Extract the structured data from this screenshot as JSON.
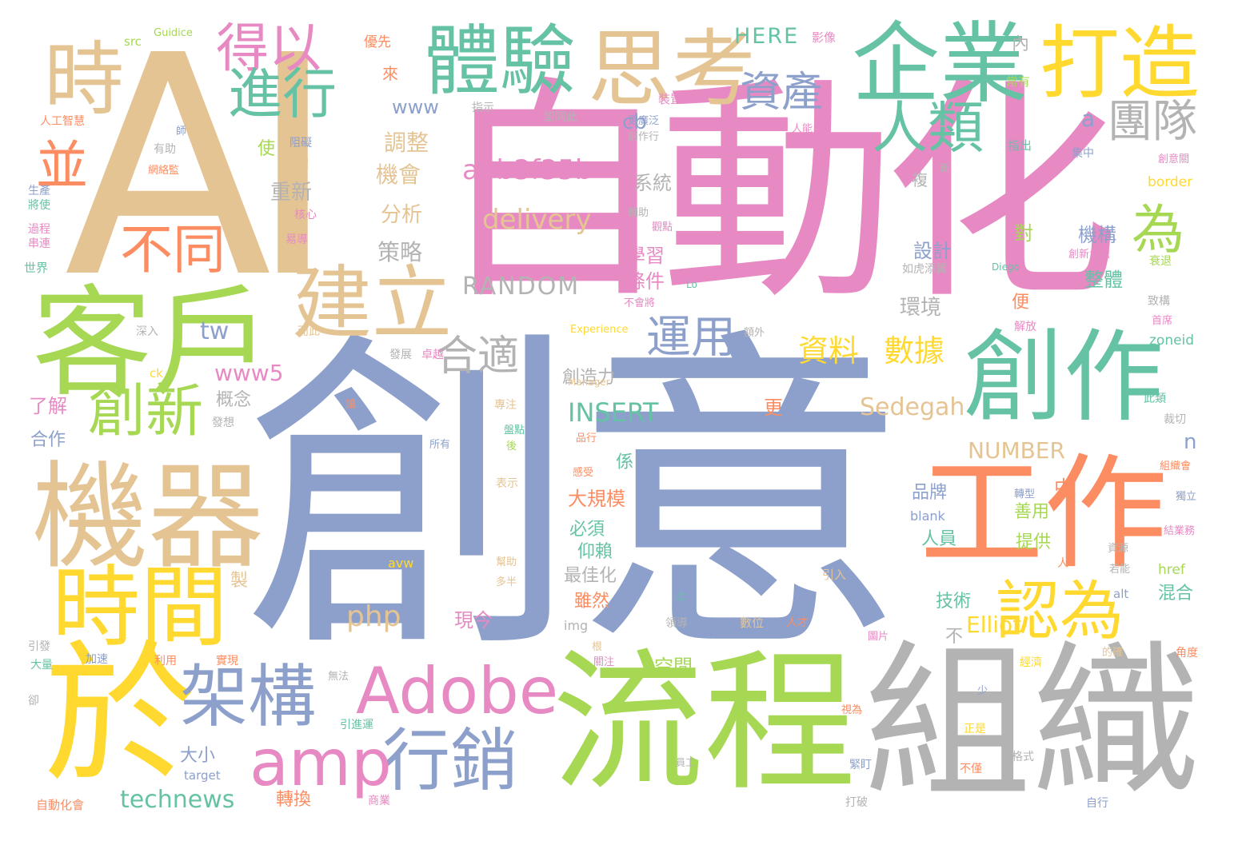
{
  "palette": {
    "teal": "#66c2a5",
    "orange": "#fc8d62",
    "blue": "#8da0cb",
    "pink": "#e78ac3",
    "green": "#a6d854",
    "yellow": "#ffd92f",
    "tan": "#e5c494",
    "gray": "#b3b3b3"
  },
  "words": [
    {
      "text": "AI",
      "color": "tan",
      "weight": 100
    },
    {
      "text": "創意",
      "color": "blue",
      "weight": 96
    },
    {
      "text": "自動化",
      "color": "pink",
      "weight": 86
    },
    {
      "text": "組織",
      "color": "gray",
      "weight": 60
    },
    {
      "text": "流程",
      "color": "green",
      "weight": 58
    },
    {
      "text": "客戶",
      "color": "green",
      "weight": 52
    },
    {
      "text": "機器",
      "color": "tan",
      "weight": 50
    },
    {
      "text": "工作",
      "color": "orange",
      "weight": 48
    },
    {
      "text": "創作",
      "color": "teal",
      "weight": 46
    },
    {
      "text": "於",
      "color": "yellow",
      "weight": 44
    },
    {
      "text": "企業",
      "color": "teal",
      "weight": 40
    },
    {
      "text": "思考",
      "color": "tan",
      "weight": 38
    },
    {
      "text": "打造",
      "color": "yellow",
      "weight": 36
    },
    {
      "text": "時間",
      "color": "yellow",
      "weight": 36
    },
    {
      "text": "建立",
      "color": "tan",
      "weight": 34
    },
    {
      "text": "體驗",
      "color": "teal",
      "weight": 32
    },
    {
      "text": "時",
      "color": "tan",
      "weight": 32
    },
    {
      "text": "架構",
      "color": "blue",
      "weight": 30
    },
    {
      "text": "行銷",
      "color": "blue",
      "weight": 30
    },
    {
      "text": "Adobe",
      "color": "pink",
      "weight": 30
    },
    {
      "text": "amp",
      "color": "pink",
      "weight": 28
    },
    {
      "text": "認為",
      "color": "yellow",
      "weight": 28
    },
    {
      "text": "人類",
      "color": "teal",
      "weight": 26
    },
    {
      "text": "創新",
      "color": "green",
      "weight": 26
    },
    {
      "text": "得以",
      "color": "pink",
      "weight": 26
    },
    {
      "text": "進行",
      "color": "teal",
      "weight": 24
    },
    {
      "text": "不同",
      "color": "orange",
      "weight": 24
    },
    {
      "text": "團隊",
      "color": "gray",
      "weight": 24
    },
    {
      "text": "為",
      "color": "green",
      "weight": 24
    },
    {
      "text": "並",
      "color": "orange",
      "weight": 22
    },
    {
      "text": "合適",
      "color": "gray",
      "weight": 22
    },
    {
      "text": "運用",
      "color": "blue",
      "weight": 20
    },
    {
      "text": "資產",
      "color": "blue",
      "weight": 20
    },
    {
      "text": "資料",
      "color": "yellow",
      "weight": 18
    },
    {
      "text": "數據",
      "color": "yellow",
      "weight": 18
    },
    {
      "text": "a4b3f35b",
      "color": "pink",
      "weight": 16
    },
    {
      "text": "delivery",
      "color": "tan",
      "weight": 16
    },
    {
      "text": "RANDOM",
      "color": "gray",
      "weight": 15
    },
    {
      "text": "php",
      "color": "tan",
      "weight": 16
    },
    {
      "text": "INSERT",
      "color": "teal",
      "weight": 15
    },
    {
      "text": "technews",
      "color": "teal",
      "weight": 14
    },
    {
      "text": "Sedegah",
      "color": "tan",
      "weight": 14
    },
    {
      "text": "NUMBER",
      "color": "tan",
      "weight": 13
    },
    {
      "text": "Elliot",
      "color": "yellow",
      "weight": 13
    },
    {
      "text": "HERE",
      "color": "teal",
      "weight": 13
    },
    {
      "text": "www5",
      "color": "pink",
      "weight": 13
    },
    {
      "text": "www",
      "color": "blue",
      "weight": 12
    },
    {
      "text": "tw",
      "color": "blue",
      "weight": 13
    },
    {
      "text": "cb",
      "color": "blue",
      "weight": 13
    },
    {
      "text": "a",
      "color": "blue",
      "weight": 13
    },
    {
      "text": "n",
      "color": "blue",
      "weight": 13
    },
    {
      "text": "調整",
      "color": "tan",
      "weight": 12
    },
    {
      "text": "機會",
      "color": "tan",
      "weight": 12
    },
    {
      "text": "重新",
      "color": "gray",
      "weight": 12
    },
    {
      "text": "分析",
      "color": "tan",
      "weight": 12
    },
    {
      "text": "策略",
      "color": "gray",
      "weight": 12
    },
    {
      "text": "學習",
      "color": "pink",
      "weight": 12
    },
    {
      "text": "條件",
      "color": "pink",
      "weight": 12
    },
    {
      "text": "系統",
      "color": "gray",
      "weight": 12
    },
    {
      "text": "設計",
      "color": "blue",
      "weight": 12
    },
    {
      "text": "環境",
      "color": "gray",
      "weight": 12
    },
    {
      "text": "整體",
      "color": "teal",
      "weight": 12
    },
    {
      "text": "機構",
      "color": "blue",
      "weight": 12
    },
    {
      "text": "創造力",
      "color": "gray",
      "weight": 11
    },
    {
      "text": "概念",
      "color": "gray",
      "weight": 11
    },
    {
      "text": "大規模",
      "color": "orange",
      "weight": 12
    },
    {
      "text": "必須",
      "color": "teal",
      "weight": 11
    },
    {
      "text": "仰賴",
      "color": "teal",
      "weight": 11
    },
    {
      "text": "最佳化",
      "color": "gray",
      "weight": 11
    },
    {
      "text": "雖然",
      "color": "orange",
      "weight": 11
    },
    {
      "text": "空間",
      "color": "green",
      "weight": 11
    },
    {
      "text": "轉換",
      "color": "orange",
      "weight": 11
    },
    {
      "text": "大小",
      "color": "blue",
      "weight": 11
    },
    {
      "text": "品牌",
      "color": "blue",
      "weight": 11
    },
    {
      "text": "善用",
      "color": "green",
      "weight": 11
    },
    {
      "text": "提供",
      "color": "green",
      "weight": 11
    },
    {
      "text": "人員",
      "color": "teal",
      "weight": 11
    },
    {
      "text": "混合",
      "color": "teal",
      "weight": 11
    },
    {
      "text": "技術",
      "color": "teal",
      "weight": 11
    },
    {
      "text": "現今",
      "color": "pink",
      "weight": 11
    },
    {
      "text": "了解",
      "color": "pink",
      "weight": 11
    },
    {
      "text": "合作",
      "color": "blue",
      "weight": 10
    },
    {
      "text": "更",
      "color": "orange",
      "weight": 10
    },
    {
      "text": "中",
      "color": "orange",
      "weight": 10
    },
    {
      "text": "對",
      "color": "green",
      "weight": 10
    },
    {
      "text": "便",
      "color": "orange",
      "weight": 10
    },
    {
      "text": "係",
      "color": "teal",
      "weight": 10
    },
    {
      "text": "使",
      "color": "green",
      "weight": 10
    },
    {
      "text": "內",
      "color": "gray",
      "weight": 9
    },
    {
      "text": "來",
      "color": "orange",
      "weight": 9
    },
    {
      "text": "複",
      "color": "gray",
      "weight": 9
    },
    {
      "text": "不",
      "color": "gray",
      "weight": 9
    },
    {
      "text": "製",
      "color": "tan",
      "weight": 9
    },
    {
      "text": "src",
      "color": "green",
      "weight": 7
    },
    {
      "text": "Guidice",
      "color": "green",
      "weight": 6
    },
    {
      "text": "優先",
      "color": "orange",
      "weight": 7
    },
    {
      "text": "影像",
      "color": "pink",
      "weight": 7
    },
    {
      "text": "人工智慧",
      "color": "orange",
      "weight": 6
    },
    {
      "text": "指示",
      "color": "gray",
      "weight": 6
    },
    {
      "text": "認同此",
      "color": "gray",
      "weight": 6
    },
    {
      "text": "裝置",
      "color": "pink",
      "weight": 6
    },
    {
      "text": "常有",
      "color": "green",
      "weight": 6
    },
    {
      "text": "人能",
      "color": "pink",
      "weight": 6
    },
    {
      "text": "指出",
      "color": "teal",
      "weight": 6
    },
    {
      "text": "集中",
      "color": "blue",
      "weight": 6
    },
    {
      "text": "創意關",
      "color": "pink",
      "weight": 5
    },
    {
      "text": "border",
      "color": "yellow",
      "weight": 7
    },
    {
      "text": "zoneid",
      "color": "teal",
      "weight": 7
    },
    {
      "text": "Diego",
      "color": "teal",
      "weight": 5
    },
    {
      "text": "Lo",
      "color": "teal",
      "weight": 5
    },
    {
      "text": "Experience",
      "color": "yellow",
      "weight": 6
    },
    {
      "text": "Manager",
      "color": "tan",
      "weight": 5
    },
    {
      "text": "Forrester",
      "color": "blue",
      "weight": 6
    },
    {
      "text": "blank",
      "color": "blue",
      "weight": 7
    },
    {
      "text": "href",
      "color": "green",
      "weight": 7
    },
    {
      "text": "alt",
      "color": "blue",
      "weight": 7
    },
    {
      "text": "img",
      "color": "gray",
      "weight": 7
    },
    {
      "text": "avw",
      "color": "yellow",
      "weight": 7
    },
    {
      "text": "target",
      "color": "blue",
      "weight": 7
    },
    {
      "text": "ck",
      "color": "yellow",
      "weight": 7
    },
    {
      "text": "生產",
      "color": "blue",
      "weight": 6
    },
    {
      "text": "將使",
      "color": "teal",
      "weight": 6
    },
    {
      "text": "過程",
      "color": "pink",
      "weight": 6
    },
    {
      "text": "串連",
      "color": "pink",
      "weight": 6
    },
    {
      "text": "世界",
      "color": "teal",
      "weight": 6
    },
    {
      "text": "核心",
      "color": "pink",
      "weight": 6
    },
    {
      "text": "易導",
      "color": "pink",
      "weight": 6
    },
    {
      "text": "軟體",
      "color": "tan",
      "weight": 6
    },
    {
      "text": "阻礙",
      "color": "blue",
      "weight": 6
    },
    {
      "text": "有助",
      "color": "gray",
      "weight": 6
    },
    {
      "text": "師",
      "color": "blue",
      "weight": 5
    },
    {
      "text": "網絡監",
      "color": "orange",
      "weight": 5
    },
    {
      "text": "深入",
      "color": "gray",
      "weight": 6
    },
    {
      "text": "而此",
      "color": "tan",
      "weight": 6
    },
    {
      "text": "發展",
      "color": "gray",
      "weight": 6
    },
    {
      "text": "卓越",
      "color": "pink",
      "weight": 6
    },
    {
      "text": "專注",
      "color": "tan",
      "weight": 6
    },
    {
      "text": "讓",
      "color": "orange",
      "weight": 5
    },
    {
      "text": "所有",
      "color": "blue",
      "weight": 5
    },
    {
      "text": "發想",
      "color": "gray",
      "weight": 6
    },
    {
      "text": "後",
      "color": "green",
      "weight": 5
    },
    {
      "text": "盤點",
      "color": "teal",
      "weight": 5
    },
    {
      "text": "表示",
      "color": "tan",
      "weight": 6
    },
    {
      "text": "品行",
      "color": "orange",
      "weight": 5
    },
    {
      "text": "感受",
      "color": "orange",
      "weight": 5
    },
    {
      "text": "幫助",
      "color": "tan",
      "weight": 5
    },
    {
      "text": "多半",
      "color": "tan",
      "weight": 5
    },
    {
      "text": "引發",
      "color": "gray",
      "weight": 6
    },
    {
      "text": "大量",
      "color": "teal",
      "weight": 6
    },
    {
      "text": "卻",
      "color": "gray",
      "weight": 6
    },
    {
      "text": "加速",
      "color": "blue",
      "weight": 6
    },
    {
      "text": "利用",
      "color": "orange",
      "weight": 6
    },
    {
      "text": "實現",
      "color": "orange",
      "weight": 6
    },
    {
      "text": "無法",
      "color": "gray",
      "weight": 5
    },
    {
      "text": "引進運",
      "color": "teal",
      "weight": 6
    },
    {
      "text": "自動化會",
      "color": "orange",
      "weight": 7
    },
    {
      "text": "商業",
      "color": "pink",
      "weight": 6
    },
    {
      "text": "打破",
      "color": "gray",
      "weight": 6
    },
    {
      "text": "緊盯",
      "color": "blue",
      "weight": 6
    },
    {
      "text": "自行",
      "color": "blue",
      "weight": 6
    },
    {
      "text": "更廣泛",
      "color": "blue",
      "weight": 5
    },
    {
      "text": "創作行",
      "color": "gray",
      "weight": 5
    },
    {
      "text": "輔助",
      "color": "gray",
      "weight": 5
    },
    {
      "text": "觀點",
      "color": "pink",
      "weight": 5
    },
    {
      "text": "如虎添翼",
      "color": "gray",
      "weight": 6
    },
    {
      "text": "不會將",
      "color": "pink",
      "weight": 5
    },
    {
      "text": "額外",
      "color": "gray",
      "weight": 5
    },
    {
      "text": "致構",
      "color": "gray",
      "weight": 6
    },
    {
      "text": "解放",
      "color": "pink",
      "weight": 6
    },
    {
      "text": "首席",
      "color": "pink",
      "weight": 5
    },
    {
      "text": "此類",
      "color": "teal",
      "weight": 6
    },
    {
      "text": "裁切",
      "color": "gray",
      "weight": 6
    },
    {
      "text": "組織會",
      "color": "orange",
      "weight": 5
    },
    {
      "text": "獨立",
      "color": "blue",
      "weight": 5
    },
    {
      "text": "結業務",
      "color": "pink",
      "weight": 5
    },
    {
      "text": "資源",
      "color": "gray",
      "weight": 5
    },
    {
      "text": "若能",
      "color": "gray",
      "weight": 5
    },
    {
      "text": "轉型",
      "color": "blue",
      "weight": 5
    },
    {
      "text": "創新大膽",
      "color": "pink",
      "weight": 5
    },
    {
      "text": "衰退",
      "color": "green",
      "weight": 5
    },
    {
      "text": "新",
      "color": "gray",
      "weight": 5
    },
    {
      "text": "終究",
      "color": "pink",
      "weight": 5
    },
    {
      "text": "上",
      "color": "teal",
      "weight": 5
    },
    {
      "text": "領導",
      "color": "gray",
      "weight": 6
    },
    {
      "text": "數位",
      "color": "tan",
      "weight": 6
    },
    {
      "text": "人才",
      "color": "orange",
      "weight": 6
    },
    {
      "text": "引入",
      "color": "tan",
      "weight": 6
    },
    {
      "text": "人",
      "color": "orange",
      "weight": 5
    },
    {
      "text": "圖片",
      "color": "pink",
      "weight": 5
    },
    {
      "text": "根",
      "color": "tan",
      "weight": 5
    },
    {
      "text": "關注",
      "color": "pink",
      "weight": 5
    },
    {
      "text": "少",
      "color": "blue",
      "weight": 5
    },
    {
      "text": "視為",
      "color": "orange",
      "weight": 5
    },
    {
      "text": "員工",
      "color": "gray",
      "weight": 5
    },
    {
      "text": "正是",
      "color": "yellow",
      "weight": 5
    },
    {
      "text": "不僅",
      "color": "orange",
      "weight": 5
    },
    {
      "text": "格式",
      "color": "gray",
      "weight": 5
    },
    {
      "text": "經濟",
      "color": "yellow",
      "weight": 5
    },
    {
      "text": "的確",
      "color": "tan",
      "weight": 5
    },
    {
      "text": "角度",
      "color": "orange",
      "weight": 5
    }
  ]
}
